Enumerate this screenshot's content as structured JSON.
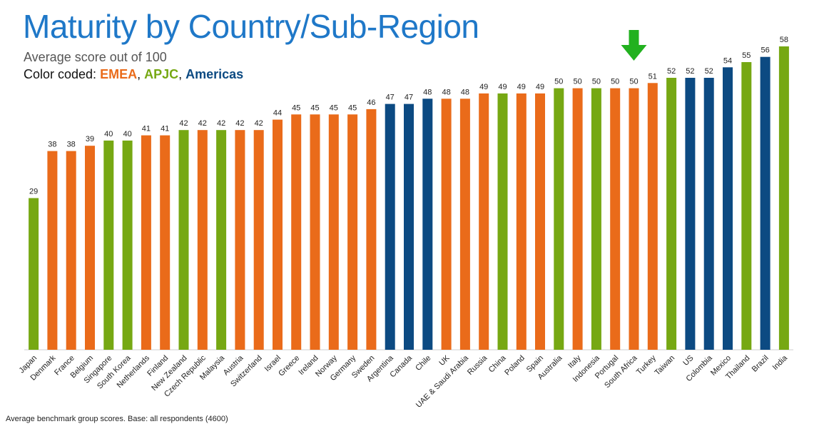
{
  "title": "Maturity by Country/Sub-Region",
  "subtitle": "Average score out of 100",
  "legend": {
    "prefix": "Color coded: ",
    "items": [
      {
        "label": "EMEA",
        "color": "#ea6b1a"
      },
      {
        "label": "APJC",
        "color": "#76a813"
      },
      {
        "label": "Americas",
        "color": "#0c4a82"
      }
    ]
  },
  "footnote": "Average benchmark group scores. Base: all respondents (4600)",
  "highlight": {
    "category": "South Africa",
    "marker": "green-down-arrow"
  },
  "chart_data": {
    "type": "bar",
    "title": "Maturity by Country/Sub-Region",
    "subtitle": "Average score out of 100",
    "xlabel": "",
    "ylabel": "",
    "ylim": [
      0,
      58
    ],
    "grid": false,
    "show_y_axis": false,
    "data_labels": true,
    "colors": {
      "EMEA": "#ea6b1a",
      "APJC": "#76a813",
      "Americas": "#0c4a82"
    },
    "categories": [
      "Japan",
      "Denmark",
      "France",
      "Belgium",
      "Singapore",
      "South Korea",
      "Netherlands",
      "Finland",
      "New Zealand",
      "Czech Republic",
      "Malaysia",
      "Austria",
      "Switzerland",
      "Israel",
      "Greece",
      "Ireland",
      "Norway",
      "Germany",
      "Sweden",
      "Argentina",
      "Canada",
      "Chile",
      "UK",
      "UAE & Saudi Arabia",
      "Russia",
      "China",
      "Poland",
      "Spain",
      "Australia",
      "Italy",
      "Indonesia",
      "Portugal",
      "South Africa",
      "Turkey",
      "Taiwan",
      "US",
      "Colombia",
      "Mexico",
      "Thailand",
      "Brazil",
      "India"
    ],
    "values": [
      29,
      38,
      38,
      39,
      40,
      40,
      41,
      41,
      42,
      42,
      42,
      42,
      42,
      44,
      45,
      45,
      45,
      45,
      46,
      47,
      47,
      48,
      48,
      48,
      49,
      49,
      49,
      49,
      50,
      50,
      50,
      50,
      50,
      51,
      52,
      52,
      52,
      54,
      55,
      56,
      58
    ],
    "regions": [
      "APJC",
      "EMEA",
      "EMEA",
      "EMEA",
      "APJC",
      "APJC",
      "EMEA",
      "EMEA",
      "APJC",
      "EMEA",
      "APJC",
      "EMEA",
      "EMEA",
      "EMEA",
      "EMEA",
      "EMEA",
      "EMEA",
      "EMEA",
      "EMEA",
      "Americas",
      "Americas",
      "Americas",
      "EMEA",
      "EMEA",
      "EMEA",
      "APJC",
      "EMEA",
      "EMEA",
      "APJC",
      "EMEA",
      "APJC",
      "EMEA",
      "EMEA",
      "EMEA",
      "APJC",
      "Americas",
      "Americas",
      "Americas",
      "APJC",
      "Americas",
      "APJC"
    ]
  }
}
